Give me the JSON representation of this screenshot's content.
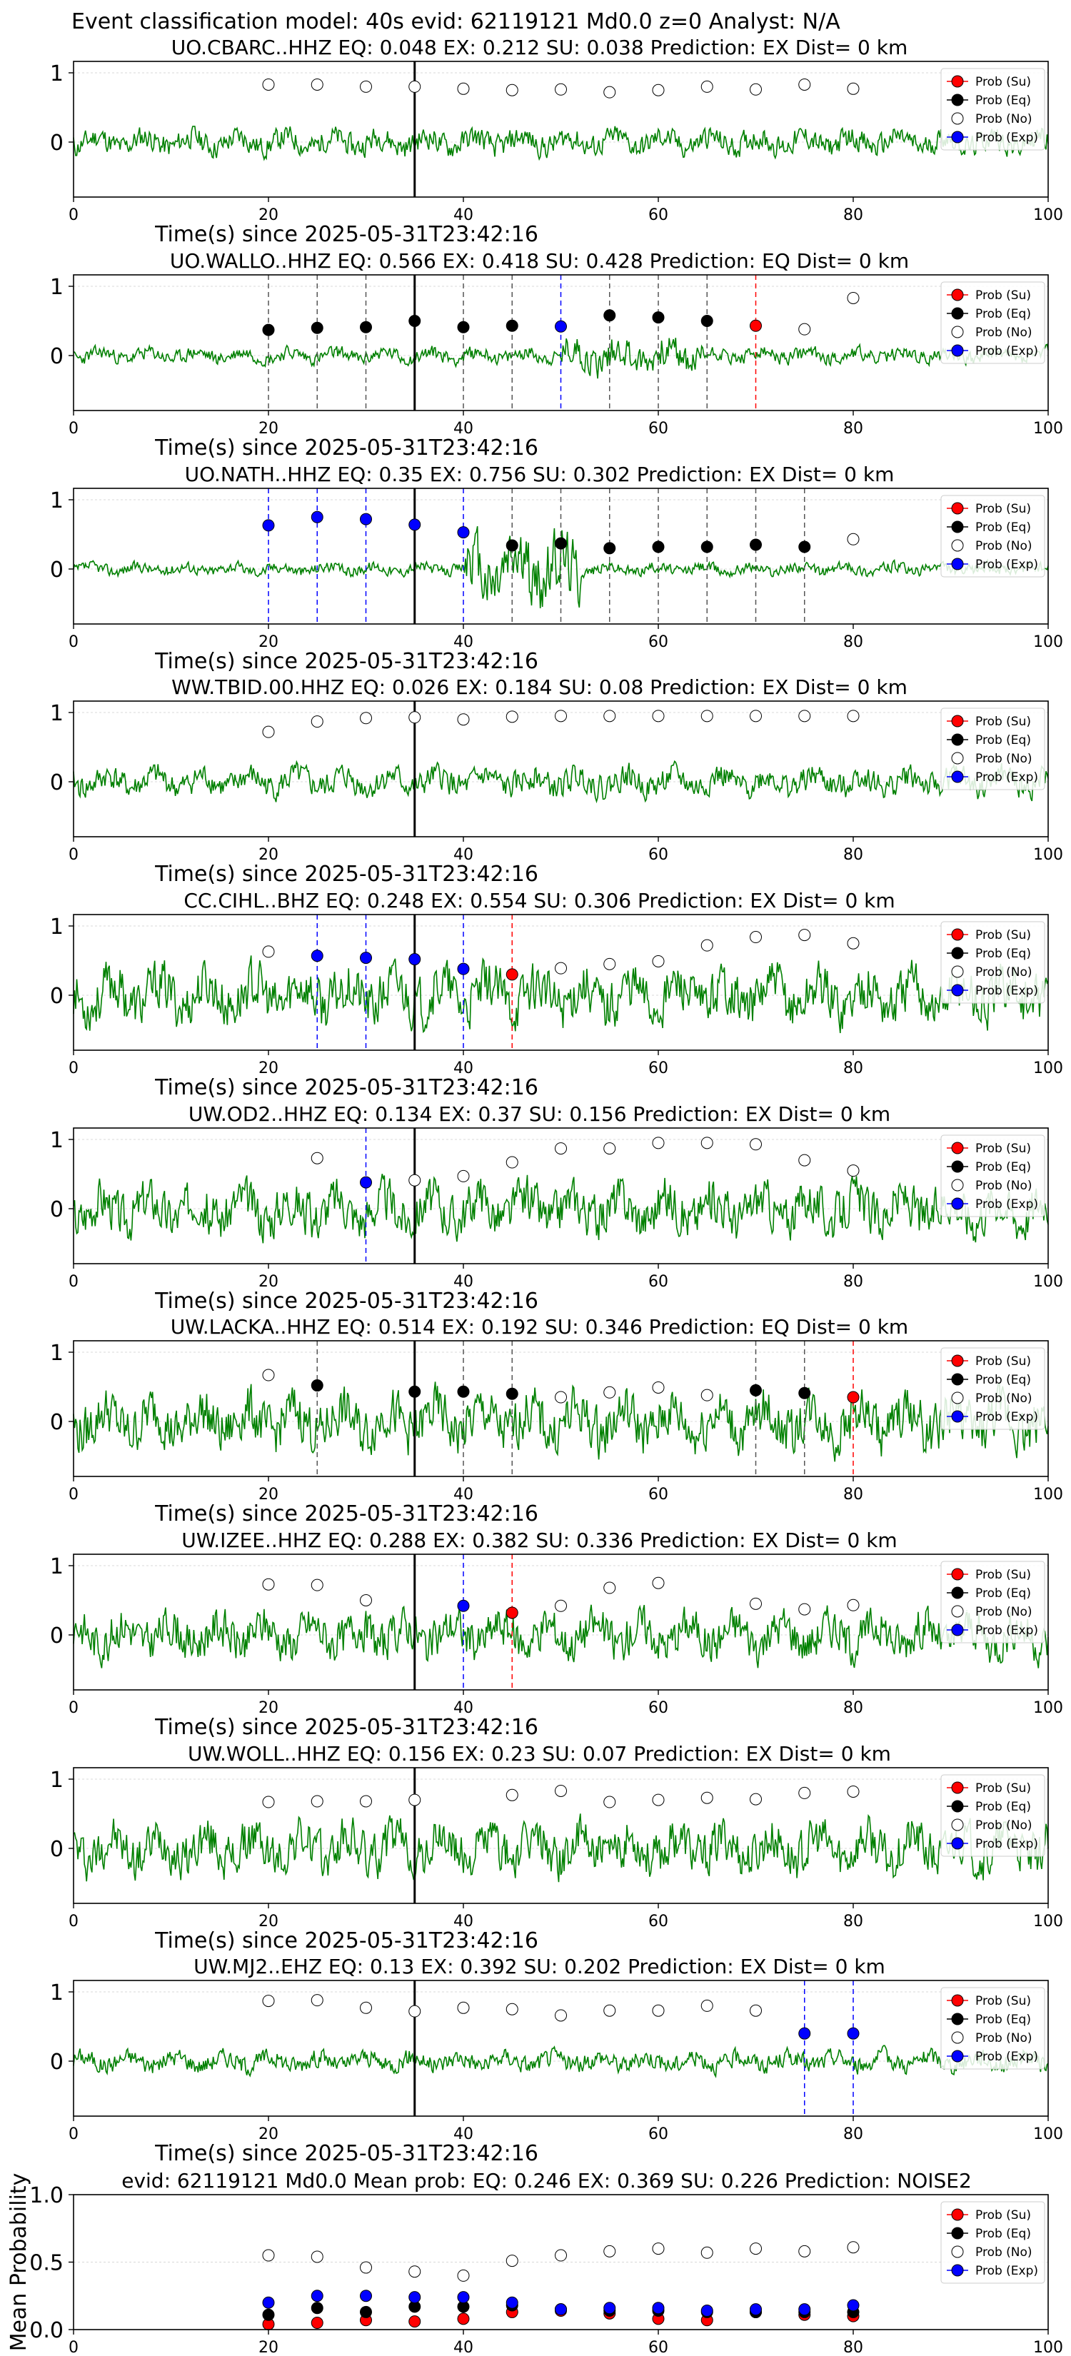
{
  "suptitle": "Event classification model: 40s evid: 62119121 Md0.0 z=0 Analyst: N/A",
  "xlabel": "Time(s) since 2025-05-31T23:42:16",
  "legend": [
    "Prob (Su)",
    "Prob (Eq)",
    "Prob (No)",
    "Prob (Exp)"
  ],
  "colors": {
    "waveform": "#008000",
    "su": "#ff0000",
    "eq": "#000000",
    "no": "#ffffff",
    "exp": "#0000ff",
    "grid": "#cccccc"
  },
  "x_ticks": [
    0,
    20,
    40,
    60,
    80,
    100
  ],
  "chart_data": [
    {
      "type": "line",
      "title": "UO.CBARC..HHZ   EQ: 0.048  EX: 0.212  SU: 0.038   Prediction: EX    Dist= 0 km",
      "xlim": [
        0,
        100
      ],
      "yticks": [
        "1",
        "0"
      ],
      "pick": 35,
      "seed": 11,
      "amp": 0.25,
      "markers": [
        {
          "x": 20,
          "y": 0.83,
          "c": "no"
        },
        {
          "x": 25,
          "y": 0.83,
          "c": "no"
        },
        {
          "x": 30,
          "y": 0.8,
          "c": "no"
        },
        {
          "x": 35,
          "y": 0.8,
          "c": "no"
        },
        {
          "x": 40,
          "y": 0.77,
          "c": "no"
        },
        {
          "x": 45,
          "y": 0.75,
          "c": "no"
        },
        {
          "x": 50,
          "y": 0.76,
          "c": "no"
        },
        {
          "x": 55,
          "y": 0.72,
          "c": "no"
        },
        {
          "x": 60,
          "y": 0.75,
          "c": "no"
        },
        {
          "x": 65,
          "y": 0.8,
          "c": "no"
        },
        {
          "x": 70,
          "y": 0.76,
          "c": "no"
        },
        {
          "x": 75,
          "y": 0.83,
          "c": "no"
        },
        {
          "x": 80,
          "y": 0.77,
          "c": "no"
        }
      ],
      "vlines": []
    },
    {
      "type": "line",
      "title": "UO.WALLO..HHZ   EQ: 0.566  EX: 0.418  SU: 0.428   Prediction: EQ    Dist= 0 km",
      "xlim": [
        0,
        100
      ],
      "yticks": [
        "1",
        "0"
      ],
      "pick": 35,
      "seed": 23,
      "amp": 0.15,
      "markers": [
        {
          "x": 20,
          "y": 0.37,
          "c": "eq"
        },
        {
          "x": 25,
          "y": 0.4,
          "c": "eq"
        },
        {
          "x": 30,
          "y": 0.41,
          "c": "eq"
        },
        {
          "x": 35,
          "y": 0.5,
          "c": "eq"
        },
        {
          "x": 40,
          "y": 0.41,
          "c": "eq"
        },
        {
          "x": 45,
          "y": 0.43,
          "c": "eq"
        },
        {
          "x": 50,
          "y": 0.42,
          "c": "exp"
        },
        {
          "x": 55,
          "y": 0.58,
          "c": "eq"
        },
        {
          "x": 60,
          "y": 0.55,
          "c": "eq"
        },
        {
          "x": 65,
          "y": 0.5,
          "c": "eq"
        },
        {
          "x": 70,
          "y": 0.43,
          "c": "su"
        },
        {
          "x": 75,
          "y": 0.38,
          "c": "no"
        },
        {
          "x": 80,
          "y": 0.83,
          "c": "no"
        }
      ],
      "vlines": [
        {
          "x": 20,
          "c": "eq"
        },
        {
          "x": 25,
          "c": "eq"
        },
        {
          "x": 30,
          "c": "eq"
        },
        {
          "x": 40,
          "c": "eq"
        },
        {
          "x": 45,
          "c": "eq"
        },
        {
          "x": 50,
          "c": "exp"
        },
        {
          "x": 55,
          "c": "eq"
        },
        {
          "x": 60,
          "c": "eq"
        },
        {
          "x": 65,
          "c": "eq"
        },
        {
          "x": 70,
          "c": "su"
        }
      ]
    },
    {
      "type": "line",
      "title": "UO.NATH..HHZ   EQ: 0.35  EX: 0.756  SU: 0.302   Prediction: EX    Dist= 0 km",
      "xlim": [
        0,
        100
      ],
      "yticks": [
        "1",
        "0"
      ],
      "pick": 35,
      "seed": 37,
      "amp": 0.12,
      "markers": [
        {
          "x": 20,
          "y": 0.63,
          "c": "exp"
        },
        {
          "x": 25,
          "y": 0.75,
          "c": "exp"
        },
        {
          "x": 30,
          "y": 0.72,
          "c": "exp"
        },
        {
          "x": 35,
          "y": 0.64,
          "c": "exp"
        },
        {
          "x": 40,
          "y": 0.53,
          "c": "exp"
        },
        {
          "x": 45,
          "y": 0.34,
          "c": "eq"
        },
        {
          "x": 50,
          "y": 0.37,
          "c": "eq"
        },
        {
          "x": 55,
          "y": 0.3,
          "c": "eq"
        },
        {
          "x": 60,
          "y": 0.32,
          "c": "eq"
        },
        {
          "x": 65,
          "y": 0.32,
          "c": "eq"
        },
        {
          "x": 70,
          "y": 0.35,
          "c": "eq"
        },
        {
          "x": 75,
          "y": 0.32,
          "c": "eq"
        },
        {
          "x": 80,
          "y": 0.43,
          "c": "no"
        }
      ],
      "vlines": [
        {
          "x": 20,
          "c": "exp"
        },
        {
          "x": 25,
          "c": "exp"
        },
        {
          "x": 30,
          "c": "exp"
        },
        {
          "x": 40,
          "c": "exp"
        },
        {
          "x": 45,
          "c": "eq"
        },
        {
          "x": 50,
          "c": "eq"
        },
        {
          "x": 55,
          "c": "eq"
        },
        {
          "x": 60,
          "c": "eq"
        },
        {
          "x": 65,
          "c": "eq"
        },
        {
          "x": 70,
          "c": "eq"
        },
        {
          "x": 75,
          "c": "eq"
        }
      ]
    },
    {
      "type": "line",
      "title": "WW.TBID.00.HHZ   EQ: 0.026  EX: 0.184  SU: 0.08   Prediction: EX    Dist= 0 km",
      "xlim": [
        0,
        100
      ],
      "yticks": [
        "1",
        "0"
      ],
      "pick": 35,
      "seed": 41,
      "amp": 0.28,
      "markers": [
        {
          "x": 20,
          "y": 0.72,
          "c": "no"
        },
        {
          "x": 25,
          "y": 0.87,
          "c": "no"
        },
        {
          "x": 30,
          "y": 0.92,
          "c": "no"
        },
        {
          "x": 35,
          "y": 0.93,
          "c": "no"
        },
        {
          "x": 40,
          "y": 0.9,
          "c": "no"
        },
        {
          "x": 45,
          "y": 0.94,
          "c": "no"
        },
        {
          "x": 50,
          "y": 0.95,
          "c": "no"
        },
        {
          "x": 55,
          "y": 0.95,
          "c": "no"
        },
        {
          "x": 60,
          "y": 0.95,
          "c": "no"
        },
        {
          "x": 65,
          "y": 0.95,
          "c": "no"
        },
        {
          "x": 70,
          "y": 0.95,
          "c": "no"
        },
        {
          "x": 75,
          "y": 0.95,
          "c": "no"
        },
        {
          "x": 80,
          "y": 0.95,
          "c": "no"
        }
      ],
      "vlines": []
    },
    {
      "type": "line",
      "title": "CC.CIHL..BHZ   EQ: 0.248  EX: 0.554  SU: 0.306   Prediction: EX    Dist= 0 km",
      "xlim": [
        0,
        100
      ],
      "yticks": [
        "1",
        "0"
      ],
      "pick": 35,
      "seed": 53,
      "amp": 0.55,
      "markers": [
        {
          "x": 20,
          "y": 0.63,
          "c": "no"
        },
        {
          "x": 25,
          "y": 0.57,
          "c": "exp"
        },
        {
          "x": 30,
          "y": 0.54,
          "c": "exp"
        },
        {
          "x": 35,
          "y": 0.52,
          "c": "exp"
        },
        {
          "x": 40,
          "y": 0.38,
          "c": "exp"
        },
        {
          "x": 45,
          "y": 0.3,
          "c": "su"
        },
        {
          "x": 50,
          "y": 0.39,
          "c": "no"
        },
        {
          "x": 55,
          "y": 0.45,
          "c": "no"
        },
        {
          "x": 60,
          "y": 0.49,
          "c": "no"
        },
        {
          "x": 65,
          "y": 0.72,
          "c": "no"
        },
        {
          "x": 70,
          "y": 0.84,
          "c": "no"
        },
        {
          "x": 75,
          "y": 0.87,
          "c": "no"
        },
        {
          "x": 80,
          "y": 0.75,
          "c": "no"
        }
      ],
      "vlines": [
        {
          "x": 25,
          "c": "exp"
        },
        {
          "x": 30,
          "c": "exp"
        },
        {
          "x": 40,
          "c": "exp"
        },
        {
          "x": 45,
          "c": "su"
        }
      ]
    },
    {
      "type": "line",
      "title": "UW.OD2..HHZ   EQ: 0.134  EX: 0.37  SU: 0.156   Prediction: EX    Dist= 0 km",
      "xlim": [
        0,
        100
      ],
      "yticks": [
        "1",
        "0"
      ],
      "pick": 35,
      "seed": 67,
      "amp": 0.5,
      "markers": [
        {
          "x": 25,
          "y": 0.73,
          "c": "no"
        },
        {
          "x": 30,
          "y": 0.38,
          "c": "exp"
        },
        {
          "x": 35,
          "y": 0.41,
          "c": "no"
        },
        {
          "x": 40,
          "y": 0.47,
          "c": "no"
        },
        {
          "x": 45,
          "y": 0.67,
          "c": "no"
        },
        {
          "x": 50,
          "y": 0.87,
          "c": "no"
        },
        {
          "x": 55,
          "y": 0.87,
          "c": "no"
        },
        {
          "x": 60,
          "y": 0.95,
          "c": "no"
        },
        {
          "x": 65,
          "y": 0.95,
          "c": "no"
        },
        {
          "x": 70,
          "y": 0.93,
          "c": "no"
        },
        {
          "x": 75,
          "y": 0.7,
          "c": "no"
        },
        {
          "x": 80,
          "y": 0.55,
          "c": "no"
        }
      ],
      "vlines": [
        {
          "x": 30,
          "c": "exp"
        }
      ]
    },
    {
      "type": "line",
      "title": "UW.LACKA..HHZ   EQ: 0.514  EX: 0.192  SU: 0.346   Prediction: EQ    Dist= 0 km",
      "xlim": [
        0,
        100
      ],
      "yticks": [
        "1",
        "0"
      ],
      "pick": 35,
      "seed": 79,
      "amp": 0.55,
      "markers": [
        {
          "x": 20,
          "y": 0.67,
          "c": "no"
        },
        {
          "x": 25,
          "y": 0.52,
          "c": "eq"
        },
        {
          "x": 35,
          "y": 0.43,
          "c": "eq"
        },
        {
          "x": 40,
          "y": 0.43,
          "c": "eq"
        },
        {
          "x": 45,
          "y": 0.4,
          "c": "eq"
        },
        {
          "x": 50,
          "y": 0.35,
          "c": "no"
        },
        {
          "x": 55,
          "y": 0.42,
          "c": "no"
        },
        {
          "x": 60,
          "y": 0.49,
          "c": "no"
        },
        {
          "x": 65,
          "y": 0.38,
          "c": "no"
        },
        {
          "x": 70,
          "y": 0.45,
          "c": "eq"
        },
        {
          "x": 75,
          "y": 0.41,
          "c": "eq"
        },
        {
          "x": 80,
          "y": 0.35,
          "c": "su"
        }
      ],
      "vlines": [
        {
          "x": 25,
          "c": "eq"
        },
        {
          "x": 40,
          "c": "eq"
        },
        {
          "x": 45,
          "c": "eq"
        },
        {
          "x": 70,
          "c": "eq"
        },
        {
          "x": 75,
          "c": "eq"
        },
        {
          "x": 80,
          "c": "su"
        }
      ]
    },
    {
      "type": "line",
      "title": "UW.IZEE..HHZ   EQ: 0.288  EX: 0.382  SU: 0.336   Prediction: EX    Dist= 0 km",
      "xlim": [
        0,
        100
      ],
      "yticks": [
        "1",
        "0"
      ],
      "pick": 35,
      "seed": 83,
      "amp": 0.45,
      "markers": [
        {
          "x": 20,
          "y": 0.73,
          "c": "no"
        },
        {
          "x": 25,
          "y": 0.72,
          "c": "no"
        },
        {
          "x": 30,
          "y": 0.5,
          "c": "no"
        },
        {
          "x": 40,
          "y": 0.42,
          "c": "exp"
        },
        {
          "x": 45,
          "y": 0.32,
          "c": "su"
        },
        {
          "x": 50,
          "y": 0.42,
          "c": "no"
        },
        {
          "x": 55,
          "y": 0.68,
          "c": "no"
        },
        {
          "x": 60,
          "y": 0.75,
          "c": "no"
        },
        {
          "x": 70,
          "y": 0.45,
          "c": "no"
        },
        {
          "x": 75,
          "y": 0.37,
          "c": "no"
        },
        {
          "x": 80,
          "y": 0.43,
          "c": "no"
        }
      ],
      "vlines": [
        {
          "x": 40,
          "c": "exp"
        },
        {
          "x": 45,
          "c": "su"
        }
      ]
    },
    {
      "type": "line",
      "title": "UW.WOLL..HHZ   EQ: 0.156  EX: 0.23  SU: 0.07   Prediction: EX    Dist= 0 km",
      "xlim": [
        0,
        100
      ],
      "yticks": [
        "1",
        "0"
      ],
      "pick": 35,
      "seed": 97,
      "amp": 0.5,
      "markers": [
        {
          "x": 20,
          "y": 0.67,
          "c": "no"
        },
        {
          "x": 25,
          "y": 0.68,
          "c": "no"
        },
        {
          "x": 30,
          "y": 0.68,
          "c": "no"
        },
        {
          "x": 35,
          "y": 0.7,
          "c": "no"
        },
        {
          "x": 45,
          "y": 0.77,
          "c": "no"
        },
        {
          "x": 50,
          "y": 0.83,
          "c": "no"
        },
        {
          "x": 55,
          "y": 0.67,
          "c": "no"
        },
        {
          "x": 60,
          "y": 0.7,
          "c": "no"
        },
        {
          "x": 65,
          "y": 0.73,
          "c": "no"
        },
        {
          "x": 70,
          "y": 0.71,
          "c": "no"
        },
        {
          "x": 75,
          "y": 0.8,
          "c": "no"
        },
        {
          "x": 80,
          "y": 0.82,
          "c": "no"
        }
      ],
      "vlines": []
    },
    {
      "type": "line",
      "title": "UW.MJ2..EHZ   EQ: 0.13  EX: 0.392  SU: 0.202   Prediction: EX    Dist= 0 km",
      "xlim": [
        0,
        100
      ],
      "yticks": [
        "1",
        "0"
      ],
      "pick": 35,
      "seed": 101,
      "amp": 0.2,
      "markers": [
        {
          "x": 20,
          "y": 0.87,
          "c": "no"
        },
        {
          "x": 25,
          "y": 0.88,
          "c": "no"
        },
        {
          "x": 30,
          "y": 0.77,
          "c": "no"
        },
        {
          "x": 35,
          "y": 0.72,
          "c": "no"
        },
        {
          "x": 40,
          "y": 0.77,
          "c": "no"
        },
        {
          "x": 45,
          "y": 0.75,
          "c": "no"
        },
        {
          "x": 50,
          "y": 0.66,
          "c": "no"
        },
        {
          "x": 55,
          "y": 0.73,
          "c": "no"
        },
        {
          "x": 60,
          "y": 0.73,
          "c": "no"
        },
        {
          "x": 65,
          "y": 0.8,
          "c": "no"
        },
        {
          "x": 70,
          "y": 0.73,
          "c": "no"
        },
        {
          "x": 75,
          "y": 0.4,
          "c": "exp"
        },
        {
          "x": 80,
          "y": 0.4,
          "c": "exp"
        }
      ],
      "vlines": [
        {
          "x": 75,
          "c": "exp"
        },
        {
          "x": 80,
          "c": "exp"
        }
      ]
    },
    {
      "type": "scatter",
      "title": "evid: 62119121  Md0.0   Mean prob:   EQ: 0.246  EX: 0.369  SU: 0.226   Prediction: NOISE2",
      "ylabel": "Mean Probability",
      "xlim": [
        0,
        100
      ],
      "ylim": [
        0,
        1
      ],
      "yticks": [
        "1.0",
        "0.5",
        "0.0"
      ],
      "x": [
        20,
        25,
        30,
        35,
        40,
        45,
        50,
        55,
        60,
        65,
        70,
        75,
        80
      ],
      "series": [
        {
          "name": "Prob (Su)",
          "c": "su",
          "values": [
            0.04,
            0.05,
            0.07,
            0.06,
            0.08,
            0.13,
            0.14,
            0.12,
            0.08,
            0.07,
            0.13,
            0.11,
            0.1
          ]
        },
        {
          "name": "Prob (Eq)",
          "c": "eq",
          "values": [
            0.11,
            0.16,
            0.13,
            0.17,
            0.17,
            0.18,
            0.15,
            0.14,
            0.14,
            0.13,
            0.13,
            0.13,
            0.13
          ]
        },
        {
          "name": "Prob (No)",
          "c": "no",
          "values": [
            0.55,
            0.54,
            0.46,
            0.43,
            0.4,
            0.51,
            0.55,
            0.58,
            0.6,
            0.57,
            0.6,
            0.58,
            0.61
          ]
        },
        {
          "name": "Prob (Exp)",
          "c": "exp",
          "values": [
            0.2,
            0.25,
            0.25,
            0.24,
            0.24,
            0.2,
            0.15,
            0.16,
            0.16,
            0.14,
            0.15,
            0.15,
            0.18
          ]
        }
      ]
    }
  ]
}
